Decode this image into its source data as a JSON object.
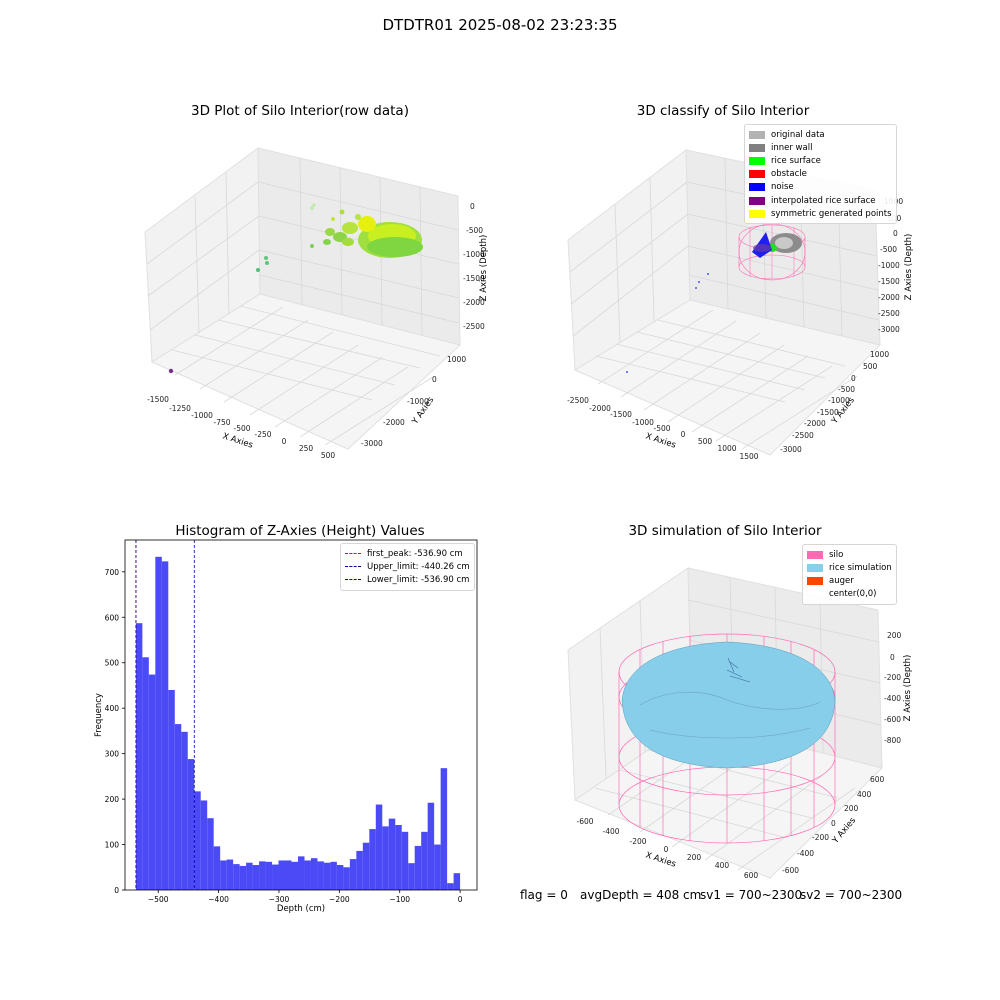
{
  "title": "DTDTR01 2025-08-02 23:23:35",
  "panels": {
    "raw": {
      "title": "3D Plot of Silo Interior(row data)",
      "xlabel": "X Axies",
      "ylabel": "Y Axies",
      "zlabel": "Z Axies (Depth)",
      "xticks": [
        "-1500",
        "-1250",
        "-1000",
        "-750",
        "-500",
        "-250",
        "0",
        "250",
        "500"
      ],
      "yticks": [
        "1000",
        "0",
        "-1000",
        "-2000",
        "-3000"
      ],
      "zticks": [
        "0",
        "-500",
        "-1000",
        "-1500",
        "-2000",
        "-2500"
      ]
    },
    "classify": {
      "title": "3D classify of Silo Interior",
      "xlabel": "X Axies",
      "ylabel": "Y Axies",
      "zlabel": "Z Axies (Depth)",
      "xticks": [
        "-2500",
        "-2000",
        "-1500",
        "-1000",
        "-500",
        "0",
        "500",
        "1000",
        "1500"
      ],
      "yticks": [
        "1000",
        "500",
        "0",
        "-500",
        "-1000",
        "-1500",
        "-2000",
        "-2500",
        "-3000"
      ],
      "zticks": [
        "1000",
        "500",
        "0",
        "-500",
        "-1000",
        "-1500",
        "-2000",
        "-2500",
        "-3000"
      ],
      "legend": [
        {
          "label": "original data",
          "color": "#b2b2b2"
        },
        {
          "label": "inner wall",
          "color": "#808080"
        },
        {
          "label": "rice surface",
          "color": "#00ff00"
        },
        {
          "label": "obstacle",
          "color": "#ff0000"
        },
        {
          "label": "noise",
          "color": "#0000ff"
        },
        {
          "label": "interpolated rice surface",
          "color": "#800080"
        },
        {
          "label": "symmetric generated points",
          "color": "#ffff00"
        }
      ]
    },
    "simulation": {
      "title": "3D simulation of Silo Interior",
      "xlabel": "X Axies",
      "ylabel": "Y Axies",
      "zlabel": "Z Axies (Depth)",
      "xticks": [
        "-600",
        "-400",
        "-200",
        "0",
        "200",
        "400",
        "600"
      ],
      "yticks": [
        "600",
        "400",
        "200",
        "0",
        "-200",
        "-400",
        "-600"
      ],
      "zticks": [
        "200",
        "0",
        "-200",
        "-400",
        "-600",
        "-800"
      ],
      "legend": [
        {
          "label": "silo",
          "color": "#ff69b4"
        },
        {
          "label": "rice simulation",
          "color": "#87ceeb"
        },
        {
          "label": "auger",
          "color": "#ff4500"
        },
        {
          "label": "center(0,0)",
          "color": ""
        }
      ]
    }
  },
  "chart_data": {
    "type": "bar",
    "title": "Histogram of Z-Axies (Height) Values",
    "xlabel": "Depth (cm)",
    "ylabel": "Frequency",
    "xlim": [
      -555,
      28
    ],
    "ylim": [
      0,
      770
    ],
    "xticks": [
      -500,
      -400,
      -300,
      -200,
      -100,
      0
    ],
    "yticks": [
      0,
      100,
      200,
      300,
      400,
      500,
      600,
      700
    ],
    "bin_start": -537,
    "bin_width": 10.74,
    "values": [
      587,
      512,
      474,
      733,
      723,
      440,
      365,
      348,
      288,
      217,
      197,
      158,
      96,
      65,
      67,
      57,
      53,
      60,
      55,
      63,
      62,
      56,
      65,
      65,
      62,
      74,
      65,
      70,
      63,
      60,
      62,
      55,
      50,
      68,
      86,
      104,
      134,
      188,
      140,
      157,
      143,
      128,
      59,
      97,
      128,
      192,
      100,
      268,
      15,
      37
    ],
    "bar_color": "#4a4af6",
    "vlines": [
      {
        "label": "first_peak: -536.90 cm",
        "x": -536.9,
        "color": "#ff0000"
      },
      {
        "label": "Upper_limit: -440.26 cm",
        "x": -440.26,
        "color": "#0000aa"
      },
      {
        "label": "Lower_limit: -536.90 cm",
        "x": -536.9,
        "color": "#0000aa"
      }
    ]
  },
  "status": {
    "flag": "flag = 0",
    "avg": "avgDepth = 408 cm",
    "sv1": "sv1 = 700~2300",
    "sv2": "sv2 = 700~2300"
  }
}
